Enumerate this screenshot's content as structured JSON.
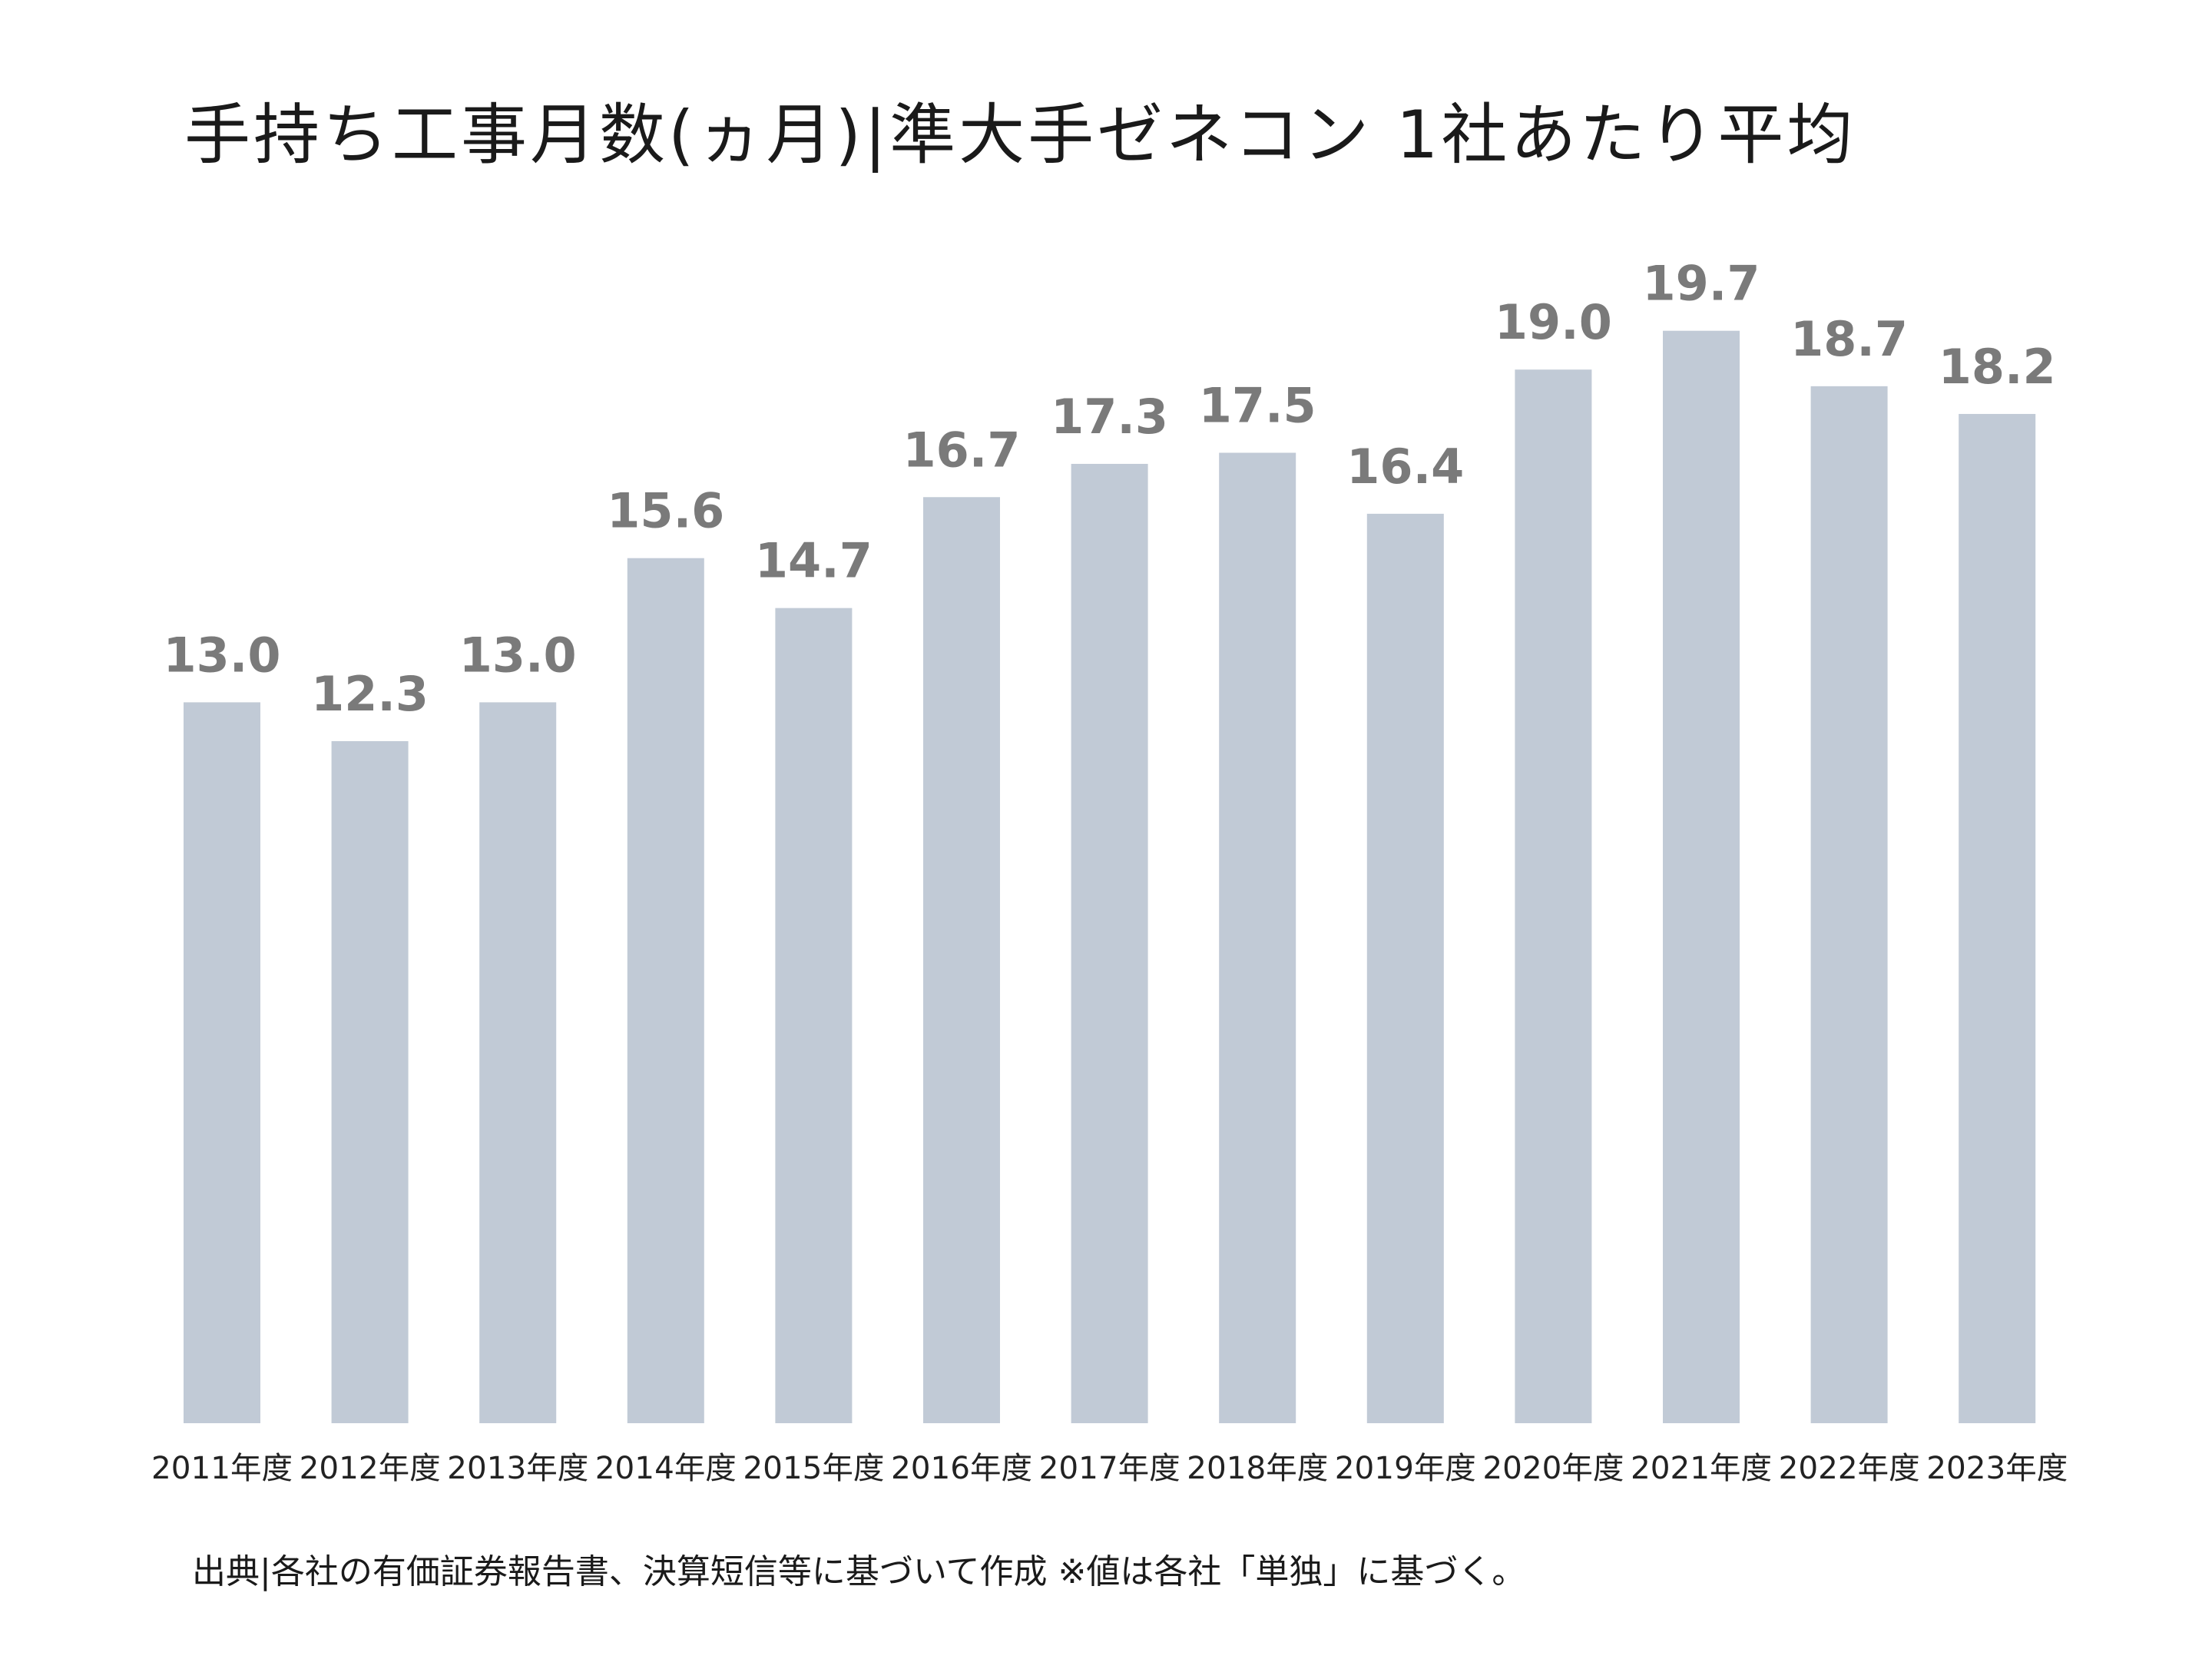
{
  "chart_data": {
    "type": "bar",
    "title": "手持ち工事月数(ヵ月)|準大手ゼネコン 1社あたり平均",
    "categories": [
      "2011年度",
      "2012年度",
      "2013年度",
      "2014年度",
      "2015年度",
      "2016年度",
      "2017年度",
      "2018年度",
      "2019年度",
      "2020年度",
      "2021年度",
      "2022年度",
      "2023年度"
    ],
    "values": [
      13.0,
      12.3,
      13.0,
      15.6,
      14.7,
      16.7,
      17.3,
      17.5,
      16.4,
      19.0,
      19.7,
      18.7,
      18.2
    ],
    "value_labels": [
      "13.0",
      "12.3",
      "13.0",
      "15.6",
      "14.7",
      "16.7",
      "17.3",
      "17.5",
      "16.4",
      "19.0",
      "19.7",
      "18.7",
      "18.2"
    ],
    "ylim": [
      0,
      20
    ],
    "grid": false,
    "legend": "none",
    "bar_color": "#c1cad6",
    "label_color": "#7a7a7a"
  },
  "footer": {
    "source": "出典|各社の有価証券報告書、決算短信等に基づいて作成 ※値は各社「単独」に基づく。"
  }
}
